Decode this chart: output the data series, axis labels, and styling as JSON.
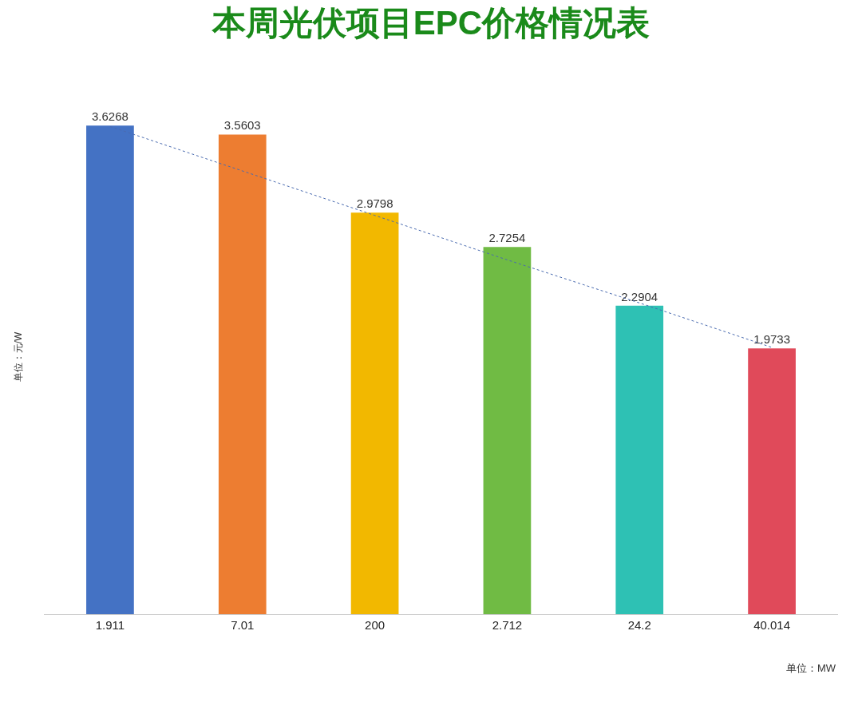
{
  "chart_data": {
    "type": "bar",
    "title": "本周光伏项目EPC价格情况表",
    "ylabel": "单位：元/W",
    "annotations": [
      "单位：MW"
    ],
    "categories": [
      "1.911",
      "7.01",
      "200",
      "2.712",
      "24.2",
      "40.014"
    ],
    "series": [
      {
        "colors": [
          "#4472c4",
          "#ed7d31",
          "#f2b800",
          "#70bb44",
          "#2ec1b4",
          "#e04a5a"
        ],
        "values": [
          3.6268,
          3.5603,
          2.9798,
          2.7254,
          2.2904,
          1.9733
        ],
        "value_labels": [
          "3.6268",
          "3.5603",
          "2.9798",
          "2.7254",
          "2.2904",
          "1.9733"
        ]
      },
      {
        "type": "line",
        "color": "#4a6bb0",
        "line_style": "dotted",
        "marker": "none",
        "values": [
          3.62,
          3.29,
          2.96,
          2.63,
          2.31,
          1.98
        ]
      }
    ],
    "tick_labels": "x",
    "grid": false
  }
}
